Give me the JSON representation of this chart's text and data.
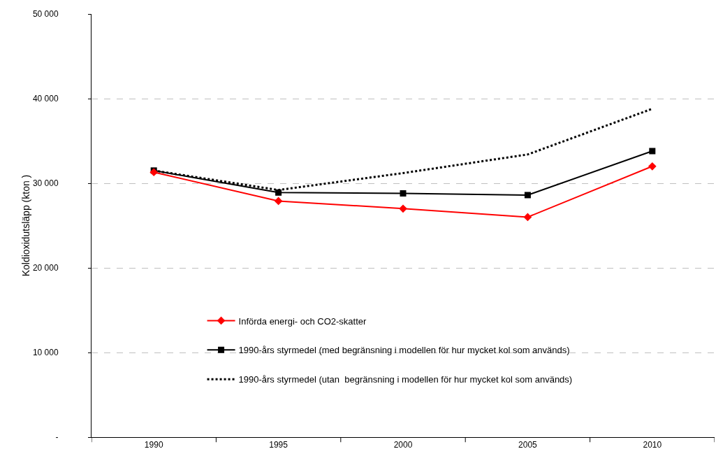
{
  "chart_data": {
    "type": "line",
    "ylabel": "Koldioxidutsläpp (kton )",
    "categories": [
      "1990",
      "1995",
      "2000",
      "2005",
      "2010"
    ],
    "series": [
      {
        "name": "Införda energi- och CO2-skatter",
        "color": "#ff0000",
        "marker": "diamond",
        "line_style": "solid",
        "values": [
          31300,
          27900,
          27000,
          26000,
          32000
        ]
      },
      {
        "name": "1990-års styrmedel (med begränsning i modellen för hur mycket kol som används)",
        "color": "#000000",
        "marker": "square",
        "line_style": "solid",
        "values": [
          31500,
          28900,
          28800,
          28600,
          33800
        ]
      },
      {
        "name": "1990-års styrmedel (utan  begränsning i modellen för hur mycket kol som används)",
        "color": "#000000",
        "marker": "none",
        "line_style": "dotted",
        "values": [
          31500,
          29200,
          31200,
          33400,
          38800
        ]
      }
    ],
    "ylim": [
      0,
      50000
    ],
    "yticks": [
      {
        "value": 0,
        "label": "-"
      },
      {
        "value": 10000,
        "label": "10 000"
      },
      {
        "value": 20000,
        "label": "20 000"
      },
      {
        "value": 30000,
        "label": "30 000"
      },
      {
        "value": 40000,
        "label": "40 000"
      },
      {
        "value": 50000,
        "label": "50 000"
      }
    ],
    "grid": "y",
    "legend": "bottom"
  }
}
